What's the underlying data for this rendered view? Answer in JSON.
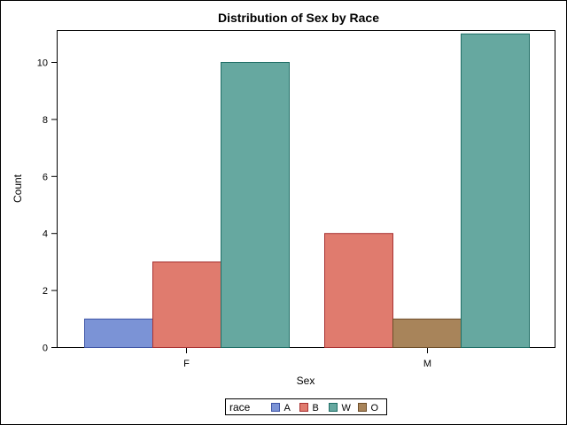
{
  "chart_data": {
    "type": "bar",
    "title": "Distribution of Sex by Race",
    "xlabel": "Sex",
    "ylabel": "Count",
    "categories": [
      "F",
      "M"
    ],
    "ylim": [
      0,
      11.2
    ],
    "yticks": [
      0,
      2,
      4,
      6,
      8,
      10
    ],
    "grid": false,
    "legend": {
      "title": "race",
      "placement": "bottom-center"
    },
    "series": [
      {
        "name": "A",
        "color": "#7b93d6",
        "stroke": "#3f55a6",
        "values": [
          1,
          null
        ]
      },
      {
        "name": "B",
        "color": "#e07b6e",
        "stroke": "#a83232",
        "values": [
          3,
          4
        ]
      },
      {
        "name": "W",
        "color": "#66a8a0",
        "stroke": "#1f6e66",
        "values": [
          10,
          11
        ]
      },
      {
        "name": "O",
        "color": "#a8845a",
        "stroke": "#6e4e2a",
        "values": [
          null,
          1
        ]
      }
    ],
    "groups": {
      "F": [
        "A",
        "B",
        "W"
      ],
      "M": [
        "B",
        "O",
        "W"
      ]
    }
  }
}
